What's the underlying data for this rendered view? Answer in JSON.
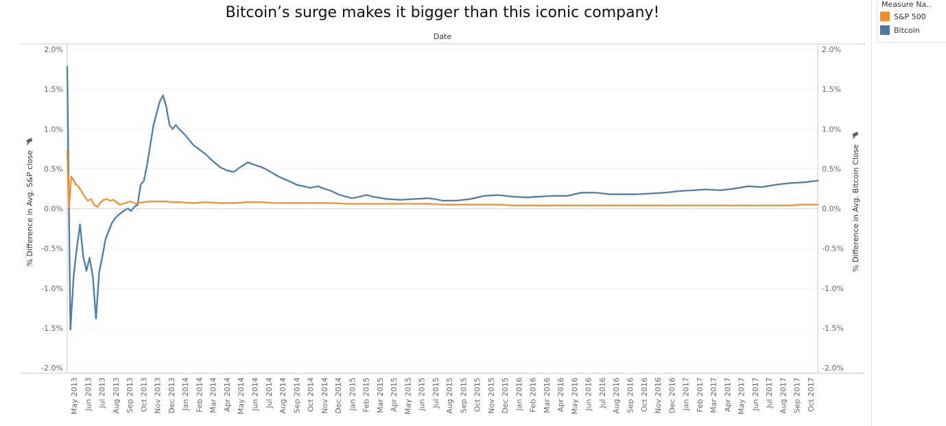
{
  "title": "Bitcoin’s surge makes it bigger than this iconic company!",
  "column_header": "Date",
  "legend": {
    "title": "Measure Na..",
    "items": [
      {
        "label": "S&P 500",
        "color": "#F28E2B"
      },
      {
        "label": "Bitcoin",
        "color": "#4E79A7"
      }
    ]
  },
  "chart_data": {
    "type": "scatter",
    "title": "Bitcoin’s surge makes it bigger than this iconic company!",
    "x_header": "Date",
    "left_axis_label": "% Difference in Avg. S&P close",
    "right_axis_label": "% Difference in Avg. Bitcoin Close",
    "ylim": [
      -2.0,
      2.0
    ],
    "y_ticks": [
      "2.0%",
      "1.5%",
      "1.0%",
      "0.5%",
      "0.0%",
      "-0.5%",
      "-1.0%",
      "-1.5%",
      "-2.0%"
    ],
    "y_tick_values": [
      2.0,
      1.5,
      1.0,
      0.5,
      0.0,
      -0.5,
      -1.0,
      -1.5,
      -2.0
    ],
    "x_range": [
      "2013-05-01",
      "2017-10-31"
    ],
    "x_ticks": [
      "May 2013",
      "Jun 2013",
      "Jul 2013",
      "Aug 2013",
      "Sep 2013",
      "Oct 2013",
      "Nov 2013",
      "Dec 2013",
      "Jan 2014",
      "Feb 2014",
      "Mar 2014",
      "Apr 2014",
      "May 2014",
      "Jun 2014",
      "Jul 2014",
      "Aug 2014",
      "Sep 2014",
      "Oct 2014",
      "Nov 2014",
      "Dec 2014",
      "Jan 2015",
      "Feb 2015",
      "Mar 2015",
      "Apr 2015",
      "May 2015",
      "Jun 2015",
      "Jul 2015",
      "Aug 2015",
      "Sep 2015",
      "Oct 2015",
      "Nov 2015",
      "Dec 2015",
      "Jan 2016",
      "Feb 2016",
      "Mar 2016",
      "Apr 2016",
      "May 2016",
      "Jun 2016",
      "Jul 2016",
      "Aug 2016",
      "Sep 2016",
      "Oct 2016",
      "Nov 2016",
      "Dec 2016",
      "Jan 2017",
      "Feb 2017",
      "Mar 2017",
      "Apr 2017",
      "May 2017",
      "Jun 2017",
      "Jul 2017",
      "Aug 2017",
      "Sep 2017",
      "Oct 2017"
    ],
    "grid": true,
    "legend_position": "top-right",
    "series": [
      {
        "name": "Bitcoin",
        "color": "#4E79A7",
        "x": [
          "2013-05-01",
          "2013-05-08",
          "2013-05-15",
          "2013-05-22",
          "2013-05-29",
          "2013-06-05",
          "2013-06-12",
          "2013-06-19",
          "2013-06-26",
          "2013-07-03",
          "2013-07-10",
          "2013-07-17",
          "2013-07-24",
          "2013-07-31",
          "2013-08-07",
          "2013-08-14",
          "2013-08-21",
          "2013-08-28",
          "2013-09-04",
          "2013-09-11",
          "2013-09-18",
          "2013-09-25",
          "2013-10-02",
          "2013-10-09",
          "2013-10-16",
          "2013-10-23",
          "2013-10-30",
          "2013-11-06",
          "2013-11-13",
          "2013-11-20",
          "2013-11-27",
          "2013-12-04",
          "2013-12-11",
          "2013-12-18",
          "2013-12-25",
          "2014-01-01",
          "2014-01-15",
          "2014-02-01",
          "2014-02-15",
          "2014-03-01",
          "2014-03-15",
          "2014-04-01",
          "2014-04-15",
          "2014-05-01",
          "2014-05-15",
          "2014-06-01",
          "2014-06-15",
          "2014-07-01",
          "2014-07-15",
          "2014-08-01",
          "2014-08-15",
          "2014-09-01",
          "2014-09-15",
          "2014-10-01",
          "2014-10-15",
          "2014-11-01",
          "2014-11-15",
          "2014-12-01",
          "2014-12-15",
          "2015-01-01",
          "2015-01-15",
          "2015-02-01",
          "2015-02-15",
          "2015-03-01",
          "2015-04-01",
          "2015-05-01",
          "2015-06-01",
          "2015-07-01",
          "2015-07-15",
          "2015-08-01",
          "2015-09-01",
          "2015-10-01",
          "2015-11-01",
          "2015-12-01",
          "2016-01-01",
          "2016-02-01",
          "2016-03-01",
          "2016-04-01",
          "2016-05-01",
          "2016-06-01",
          "2016-07-01",
          "2016-08-01",
          "2016-09-01",
          "2016-10-01",
          "2016-11-01",
          "2016-12-01",
          "2017-01-01",
          "2017-02-01",
          "2017-03-01",
          "2017-04-01",
          "2017-05-01",
          "2017-06-01",
          "2017-07-01",
          "2017-08-01",
          "2017-09-01",
          "2017-10-01",
          "2017-10-31"
        ],
        "values": [
          1.78,
          -1.52,
          -0.85,
          -0.5,
          -0.2,
          -0.6,
          -0.78,
          -0.62,
          -0.85,
          -1.38,
          -0.8,
          -0.6,
          -0.38,
          -0.28,
          -0.18,
          -0.12,
          -0.08,
          -0.05,
          -0.02,
          0.0,
          -0.03,
          0.02,
          0.05,
          0.3,
          0.35,
          0.55,
          0.8,
          1.05,
          1.2,
          1.35,
          1.42,
          1.28,
          1.05,
          1.0,
          1.05,
          1.0,
          0.92,
          0.8,
          0.74,
          0.68,
          0.6,
          0.52,
          0.48,
          0.46,
          0.52,
          0.58,
          0.55,
          0.52,
          0.48,
          0.42,
          0.38,
          0.34,
          0.3,
          0.28,
          0.26,
          0.28,
          0.25,
          0.22,
          0.18,
          0.15,
          0.13,
          0.15,
          0.17,
          0.15,
          0.12,
          0.11,
          0.12,
          0.13,
          0.12,
          0.1,
          0.1,
          0.12,
          0.16,
          0.17,
          0.15,
          0.14,
          0.15,
          0.16,
          0.16,
          0.2,
          0.2,
          0.18,
          0.18,
          0.18,
          0.19,
          0.2,
          0.22,
          0.23,
          0.24,
          0.23,
          0.25,
          0.28,
          0.27,
          0.3,
          0.32,
          0.33,
          0.35
        ]
      },
      {
        "name": "S&P 500",
        "color": "#F28E2B",
        "x": [
          "2013-05-01",
          "2013-05-05",
          "2013-05-10",
          "2013-05-15",
          "2013-05-20",
          "2013-05-25",
          "2013-06-01",
          "2013-06-08",
          "2013-06-15",
          "2013-06-22",
          "2013-06-29",
          "2013-07-06",
          "2013-07-13",
          "2013-07-20",
          "2013-07-27",
          "2013-08-03",
          "2013-08-10",
          "2013-08-17",
          "2013-08-24",
          "2013-08-31",
          "2013-09-07",
          "2013-09-14",
          "2013-09-21",
          "2013-09-28",
          "2013-10-05",
          "2013-10-15",
          "2013-11-01",
          "2013-11-15",
          "2013-12-01",
          "2013-12-15",
          "2014-01-01",
          "2014-02-01",
          "2014-03-01",
          "2014-04-01",
          "2014-05-01",
          "2014-06-01",
          "2014-07-01",
          "2014-08-01",
          "2014-09-01",
          "2014-10-01",
          "2014-11-01",
          "2014-12-01",
          "2015-01-01",
          "2015-02-01",
          "2015-03-01",
          "2015-04-01",
          "2015-05-01",
          "2015-06-01",
          "2015-07-01",
          "2015-08-01",
          "2015-09-01",
          "2015-10-01",
          "2015-11-01",
          "2015-12-01",
          "2016-01-01",
          "2016-02-01",
          "2016-03-01",
          "2016-04-01",
          "2016-05-01",
          "2016-06-01",
          "2016-07-01",
          "2016-08-01",
          "2016-09-01",
          "2016-10-01",
          "2016-11-01",
          "2016-12-01",
          "2017-01-01",
          "2017-02-01",
          "2017-03-01",
          "2017-04-01",
          "2017-05-01",
          "2017-06-01",
          "2017-07-01",
          "2017-08-01",
          "2017-09-01",
          "2017-10-01",
          "2017-10-31"
        ],
        "values": [
          0.72,
          0.02,
          0.4,
          0.36,
          0.3,
          0.28,
          0.22,
          0.15,
          0.1,
          0.12,
          0.05,
          0.02,
          0.08,
          0.11,
          0.12,
          0.1,
          0.11,
          0.08,
          0.05,
          0.06,
          0.07,
          0.09,
          0.08,
          0.06,
          0.07,
          0.08,
          0.09,
          0.09,
          0.09,
          0.08,
          0.08,
          0.07,
          0.08,
          0.07,
          0.07,
          0.08,
          0.08,
          0.07,
          0.07,
          0.07,
          0.07,
          0.07,
          0.06,
          0.06,
          0.06,
          0.06,
          0.06,
          0.06,
          0.06,
          0.05,
          0.05,
          0.05,
          0.05,
          0.05,
          0.04,
          0.04,
          0.04,
          0.04,
          0.04,
          0.04,
          0.04,
          0.04,
          0.04,
          0.04,
          0.04,
          0.04,
          0.04,
          0.04,
          0.04,
          0.04,
          0.04,
          0.04,
          0.04,
          0.04,
          0.04,
          0.05,
          0.05
        ]
      }
    ]
  }
}
